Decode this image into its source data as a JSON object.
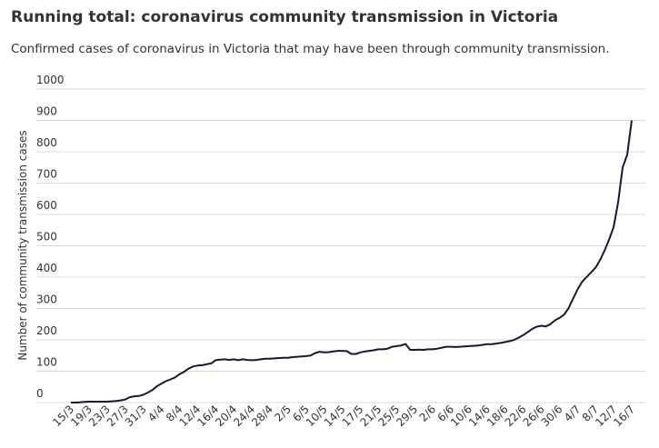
{
  "chart_data": {
    "type": "line",
    "title": "Running total: coronavirus community transmission in Victoria",
    "subtitle": "Confirmed cases of coronavirus in Victoria that may have been through community transmission.",
    "y_axis_label": "Number of community transmission cases",
    "categories": [
      "15/3",
      null,
      null,
      null,
      "19/3",
      null,
      null,
      null,
      "23/3",
      null,
      null,
      null,
      "27/3",
      null,
      null,
      null,
      "31/3",
      null,
      null,
      null,
      "4/4",
      null,
      null,
      null,
      "8/4",
      null,
      null,
      null,
      "12/4",
      null,
      null,
      null,
      "16/4",
      null,
      null,
      null,
      "20/4",
      null,
      null,
      null,
      "24/4",
      null,
      null,
      null,
      "28/4",
      null,
      null,
      null,
      "2/5",
      null,
      null,
      null,
      "6/5",
      null,
      null,
      null,
      "10/5",
      null,
      null,
      null,
      "14/5",
      null,
      null,
      null,
      "17/5",
      null,
      null,
      null,
      "21/5",
      null,
      null,
      null,
      "25/5",
      null,
      null,
      null,
      "29/5",
      null,
      null,
      null,
      "2/6",
      null,
      null,
      null,
      "6/6",
      null,
      null,
      null,
      "10/6",
      null,
      null,
      null,
      "14/6",
      null,
      null,
      null,
      "18/6",
      null,
      null,
      null,
      "22/6",
      null,
      null,
      null,
      "26/6",
      null,
      null,
      null,
      "30/6",
      null,
      null,
      null,
      "4/7",
      null,
      null,
      null,
      "8/7",
      null,
      null,
      null,
      "12/7",
      null,
      null,
      null,
      "16/7"
    ],
    "series": [
      {
        "name": "Community transmission",
        "color": "#141a33",
        "values": [
          0,
          0,
          1,
          2,
          3,
          3,
          3,
          3,
          3,
          4,
          5,
          7,
          10,
          17,
          20,
          21,
          25,
          32,
          40,
          52,
          60,
          68,
          74,
          80,
          90,
          98,
          108,
          115,
          118,
          119,
          122,
          125,
          135,
          137,
          138,
          136,
          138,
          135,
          138,
          136,
          135,
          136,
          138,
          140,
          140,
          141,
          142,
          143,
          143,
          145,
          146,
          147,
          148,
          150,
          158,
          162,
          160,
          161,
          163,
          165,
          165,
          164,
          155,
          155,
          160,
          163,
          165,
          167,
          170,
          170,
          172,
          178,
          180,
          182,
          187,
          168,
          168,
          169,
          168,
          170,
          170,
          172,
          175,
          178,
          178,
          177,
          178,
          179,
          180,
          181,
          182,
          184,
          186,
          186,
          188,
          190,
          193,
          196,
          200,
          207,
          215,
          225,
          235,
          242,
          245,
          243,
          250,
          262,
          270,
          280,
          300,
          330,
          360,
          385,
          400,
          415,
          430,
          455,
          485,
          520,
          560,
          640,
          750,
          790,
          900
        ]
      }
    ],
    "ylim": [
      0,
      1000
    ],
    "yticks": [
      0,
      100,
      200,
      300,
      400,
      500,
      600,
      700,
      800,
      900,
      1000
    ],
    "grid": true
  }
}
